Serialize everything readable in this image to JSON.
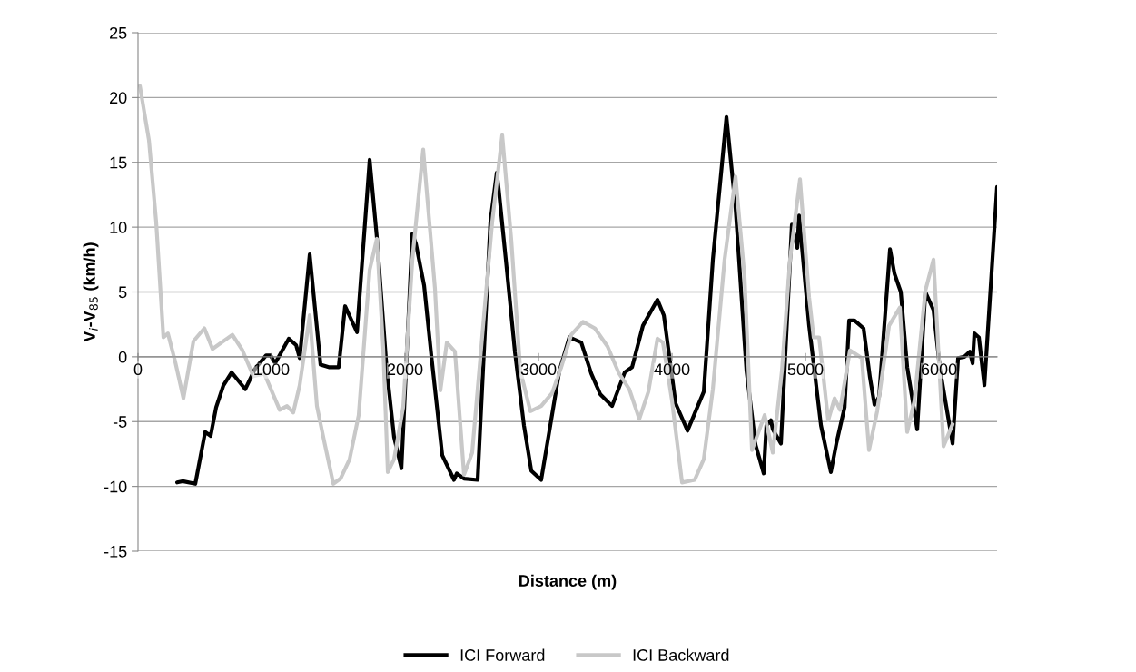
{
  "chart_data": {
    "type": "line",
    "xlabel": "Distance (m)",
    "ylabel": "V$_{i}$-V$_{85}$ (km/h)",
    "xlim": [
      0,
      6435
    ],
    "xticks": [
      0,
      1000,
      2000,
      3000,
      4000,
      5000,
      6000
    ],
    "ylim": [
      -15,
      25
    ],
    "yticks": [
      -15,
      -10,
      -5,
      0,
      5,
      10,
      15,
      20,
      25
    ],
    "grid": "y",
    "legend": "bottom",
    "marker": "none",
    "line_style": "solid",
    "series": [
      {
        "name": "ICI Forward",
        "color": "#000000",
        "x": [
          293,
          333,
          429,
          503,
          544,
          585,
          640,
          701,
          803,
          878,
          959,
          993,
          1027,
          1129,
          1184,
          1211,
          1286,
          1367,
          1429,
          1503,
          1551,
          1640,
          1735,
          1789,
          1864,
          1918,
          1973,
          2055,
          2082,
          2143,
          2197,
          2279,
          2367,
          2388,
          2442,
          2544,
          2639,
          2687,
          2701,
          2755,
          2823,
          2891,
          2946,
          3020,
          3088,
          3156,
          3231,
          3320,
          3395,
          3463,
          3551,
          3646,
          3701,
          3782,
          3891,
          3939,
          4027,
          4116,
          4238,
          4306,
          4408,
          4476,
          4558,
          4626,
          4687,
          4707,
          4741,
          4755,
          4816,
          4898,
          4939,
          4952,
          5027,
          5116,
          5190,
          5231,
          5293,
          5327,
          5367,
          5435,
          5483,
          5517,
          5551,
          5633,
          5667,
          5714,
          5762,
          5837,
          5898,
          5959,
          6007,
          6061,
          6102,
          6143,
          6190,
          6231,
          6252,
          6265,
          6299,
          6340,
          6435
        ],
        "values": [
          -9.7,
          -9.6,
          -9.8,
          -5.8,
          -6.1,
          -3.9,
          -2.2,
          -1.2,
          -2.5,
          -0.9,
          0.1,
          0.1,
          -0.5,
          1.4,
          0.9,
          -0.1,
          7.9,
          -0.6,
          -0.8,
          -0.8,
          3.9,
          1.9,
          15.2,
          9.2,
          -1.1,
          -6.2,
          -8.6,
          9.5,
          8.7,
          5.5,
          0.1,
          -7.6,
          -9.5,
          -9.0,
          -9.4,
          -9.5,
          10.4,
          14.2,
          13.0,
          7.5,
          0.4,
          -5.3,
          -8.8,
          -9.5,
          -5.3,
          -1.1,
          1.5,
          1.1,
          -1.3,
          -2.9,
          -3.8,
          -1.2,
          -0.8,
          2.4,
          4.4,
          3.2,
          -3.6,
          -5.7,
          -2.7,
          7.5,
          18.5,
          11.5,
          -1.1,
          -6.8,
          -9.0,
          -5.3,
          -4.9,
          -5.6,
          -6.7,
          10.2,
          8.4,
          10.9,
          2.4,
          -5.3,
          -8.9,
          -6.7,
          -3.9,
          2.8,
          2.8,
          2.2,
          -1.6,
          -3.7,
          -3.1,
          8.3,
          6.4,
          5.0,
          -0.8,
          -5.6,
          5.0,
          3.6,
          -0.9,
          -4.2,
          -6.7,
          -0.1,
          0.0,
          0.4,
          -0.5,
          1.8,
          1.5,
          -2.2,
          13.1
        ]
      },
      {
        "name": "ICI Backward",
        "color": "#c8c8c8",
        "x": [
          14,
          82,
          136,
          190,
          224,
          279,
          340,
          415,
          497,
          558,
          707,
          782,
          864,
          946,
          1061,
          1116,
          1163,
          1211,
          1286,
          1340,
          1388,
          1463,
          1517,
          1585,
          1653,
          1735,
          1789,
          1837,
          1871,
          1918,
          1986,
          2055,
          2136,
          2224,
          2265,
          2313,
          2374,
          2442,
          2503,
          2585,
          2653,
          2728,
          2796,
          2864,
          2939,
          3020,
          3102,
          3170,
          3245,
          3333,
          3422,
          3517,
          3599,
          3680,
          3755,
          3823,
          3891,
          3932,
          4000,
          4075,
          4170,
          4238,
          4306,
          4394,
          4476,
          4544,
          4599,
          4694,
          4755,
          4823,
          4884,
          4959,
          5027,
          5061,
          5102,
          5170,
          5218,
          5259,
          5333,
          5422,
          5476,
          5537,
          5626,
          5707,
          5762,
          5816,
          5898,
          5959,
          6034,
          6102
        ],
        "values": [
          20.9,
          16.7,
          10.4,
          1.5,
          1.8,
          -0.4,
          -3.2,
          1.2,
          2.2,
          0.6,
          1.7,
          0.5,
          -1.5,
          -1.3,
          -4.1,
          -3.8,
          -4.3,
          -2.2,
          3.2,
          -3.8,
          -6.2,
          -9.8,
          -9.4,
          -7.9,
          -4.5,
          6.7,
          9.1,
          0.6,
          -8.9,
          -7.9,
          -3.9,
          7.5,
          16.0,
          5.3,
          -2.6,
          1.1,
          0.4,
          -9.1,
          -7.4,
          2.4,
          10.4,
          17.1,
          9.0,
          -1.1,
          -4.2,
          -3.8,
          -2.8,
          -0.8,
          1.7,
          2.7,
          2.2,
          0.8,
          -1.2,
          -2.5,
          -4.8,
          -2.7,
          1.4,
          1.1,
          -3.4,
          -9.7,
          -9.5,
          -7.9,
          -2.5,
          7.5,
          13.9,
          6.1,
          -7.2,
          -4.5,
          -7.4,
          -1.1,
          7.5,
          13.7,
          4.6,
          1.5,
          1.5,
          -4.9,
          -3.2,
          -4.1,
          0.5,
          -0.1,
          -7.2,
          -4.2,
          2.4,
          3.8,
          -5.8,
          -3.4,
          5.1,
          7.5,
          -6.9,
          -5.2
        ]
      }
    ]
  }
}
